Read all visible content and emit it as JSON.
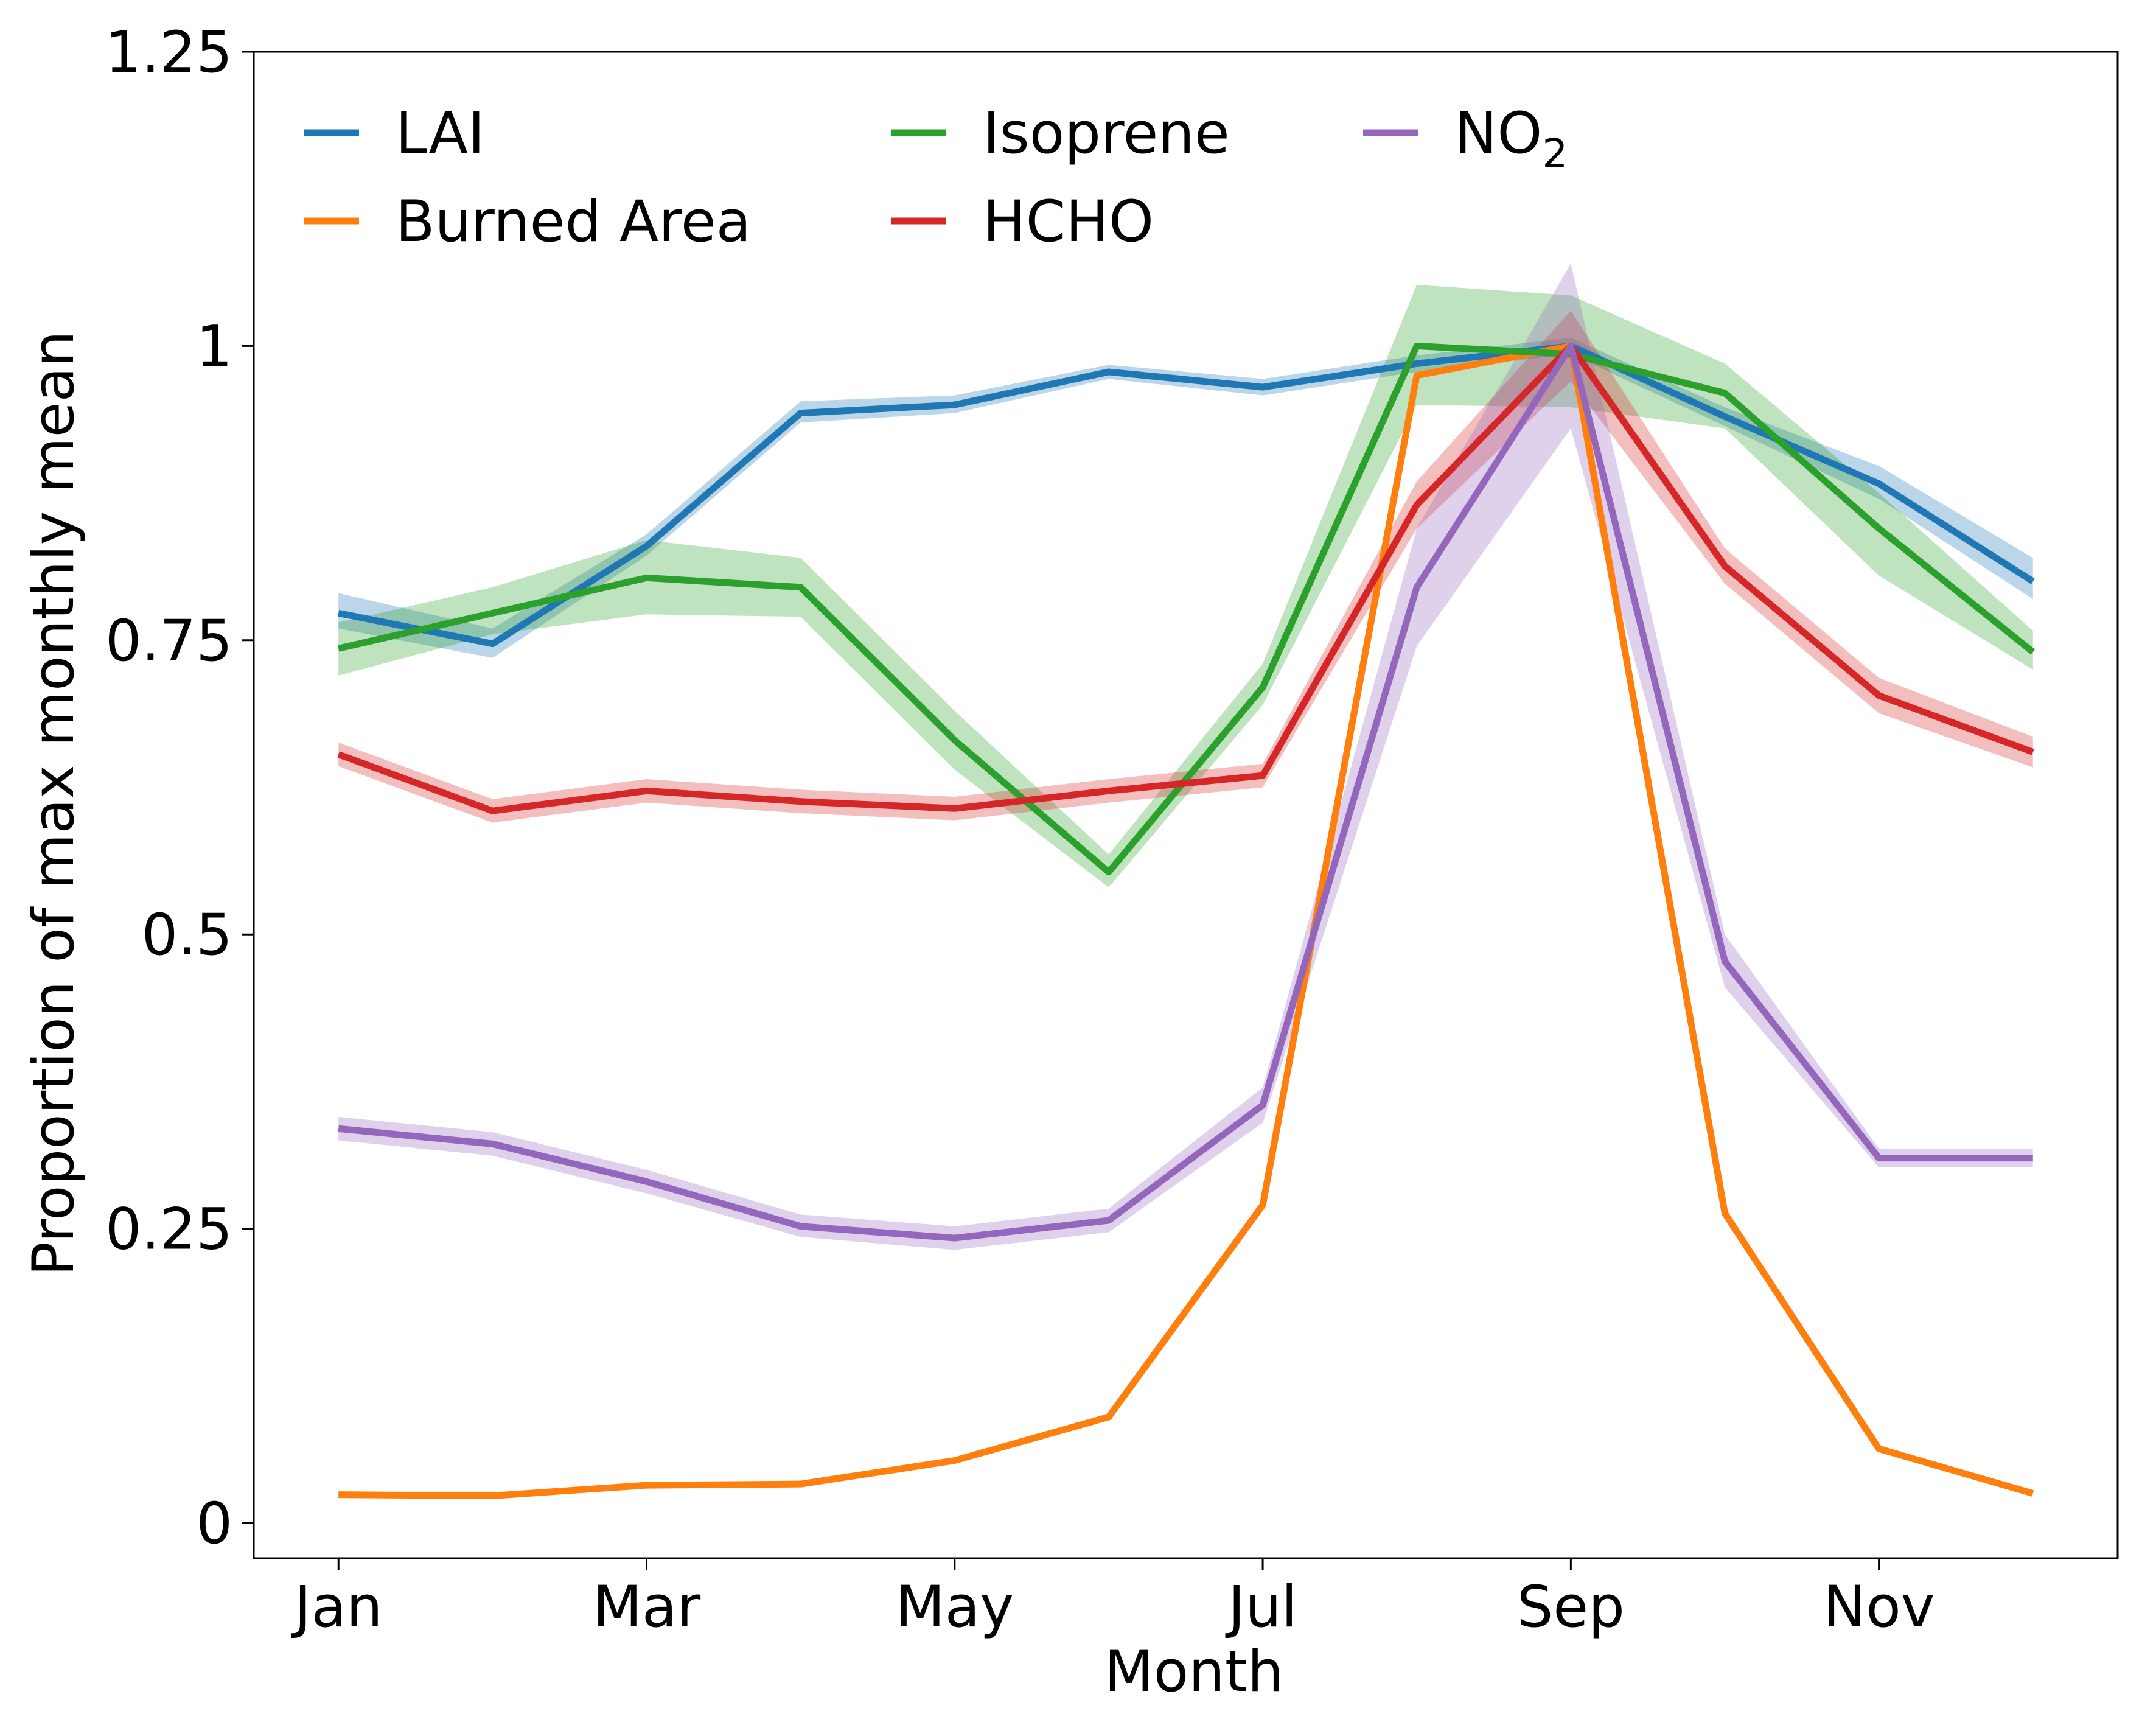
{
  "chart_data": {
    "type": "line",
    "xlabel": "Month",
    "ylabel": "Proportion of max monthly mean",
    "ylim": [
      -0.03,
      1.25
    ],
    "x": [
      1,
      2,
      3,
      4,
      5,
      6,
      7,
      8,
      9,
      10,
      11,
      12
    ],
    "xticks": [
      {
        "value": 1,
        "label": "Jan"
      },
      {
        "value": 3,
        "label": "Mar"
      },
      {
        "value": 5,
        "label": "May"
      },
      {
        "value": 7,
        "label": "Jul"
      },
      {
        "value": 9,
        "label": "Sep"
      },
      {
        "value": 11,
        "label": "Nov"
      }
    ],
    "yticks": [
      {
        "value": 0,
        "label": "0"
      },
      {
        "value": 0.25,
        "label": "0.25"
      },
      {
        "value": 0.5,
        "label": "0.5"
      },
      {
        "value": 0.75,
        "label": "0.75"
      },
      {
        "value": 1,
        "label": "1"
      },
      {
        "value": 1.25,
        "label": "1.25"
      }
    ],
    "grid": false,
    "legend_position": "top-left",
    "series": [
      {
        "name": "LAI",
        "color": "#1f77b4",
        "values": [
          0.773,
          0.747,
          0.83,
          0.943,
          0.95,
          0.978,
          0.965,
          0.985,
          1.0,
          0.94,
          0.883,
          0.8
        ],
        "lower": [
          0.76,
          0.735,
          0.822,
          0.935,
          0.943,
          0.972,
          0.958,
          0.978,
          0.993,
          0.932,
          0.87,
          0.785
        ],
        "upper": [
          0.79,
          0.76,
          0.84,
          0.953,
          0.958,
          0.984,
          0.972,
          0.992,
          1.007,
          0.948,
          0.898,
          0.82
        ]
      },
      {
        "name": "Burned Area",
        "color": "#ff7f0e",
        "values": [
          0.024,
          0.023,
          0.032,
          0.033,
          0.053,
          0.09,
          0.27,
          0.975,
          1.0,
          0.263,
          0.063,
          0.025
        ],
        "lower": [
          0.024,
          0.023,
          0.032,
          0.033,
          0.053,
          0.09,
          0.27,
          0.975,
          1.0,
          0.263,
          0.063,
          0.025
        ],
        "upper": [
          0.024,
          0.023,
          0.032,
          0.033,
          0.053,
          0.09,
          0.27,
          0.975,
          1.0,
          0.263,
          0.063,
          0.025
        ]
      },
      {
        "name": "Isoprene",
        "color": "#2ca02c",
        "values": [
          0.743,
          0.773,
          0.803,
          0.795,
          0.665,
          0.553,
          0.71,
          1.0,
          0.993,
          0.96,
          0.845,
          0.74
        ],
        "lower": [
          0.72,
          0.755,
          0.772,
          0.77,
          0.64,
          0.54,
          0.695,
          0.95,
          0.948,
          0.93,
          0.805,
          0.725
        ],
        "upper": [
          0.765,
          0.795,
          0.835,
          0.82,
          0.69,
          0.568,
          0.73,
          1.052,
          1.043,
          0.985,
          0.875,
          0.758
        ]
      },
      {
        "name": "HCHO",
        "color": "#d62728",
        "values": [
          0.653,
          0.605,
          0.622,
          0.613,
          0.607,
          0.622,
          0.635,
          0.865,
          1.0,
          0.813,
          0.703,
          0.655
        ],
        "lower": [
          0.643,
          0.595,
          0.612,
          0.603,
          0.597,
          0.612,
          0.625,
          0.845,
          0.97,
          0.798,
          0.688,
          0.642
        ],
        "upper": [
          0.663,
          0.615,
          0.632,
          0.623,
          0.617,
          0.632,
          0.645,
          0.885,
          1.03,
          0.828,
          0.718,
          0.668
        ]
      },
      {
        "name": "NO2",
        "color": "#9467bd",
        "values": [
          0.335,
          0.322,
          0.29,
          0.252,
          0.242,
          0.257,
          0.355,
          0.795,
          1.0,
          0.477,
          0.31,
          0.31
        ],
        "lower": [
          0.325,
          0.312,
          0.28,
          0.243,
          0.232,
          0.247,
          0.34,
          0.745,
          0.93,
          0.455,
          0.302,
          0.302
        ],
        "upper": [
          0.345,
          0.332,
          0.3,
          0.262,
          0.252,
          0.267,
          0.37,
          0.845,
          1.07,
          0.5,
          0.318,
          0.318
        ]
      }
    ],
    "legend": [
      {
        "label": "LAI",
        "sub": "",
        "series": 0
      },
      {
        "label": "Burned Area",
        "sub": "",
        "series": 1
      },
      {
        "label": "Isoprene",
        "sub": "",
        "series": 2
      },
      {
        "label": "HCHO",
        "sub": "",
        "series": 3
      },
      {
        "label": "NO",
        "sub": "2",
        "series": 4
      }
    ]
  }
}
